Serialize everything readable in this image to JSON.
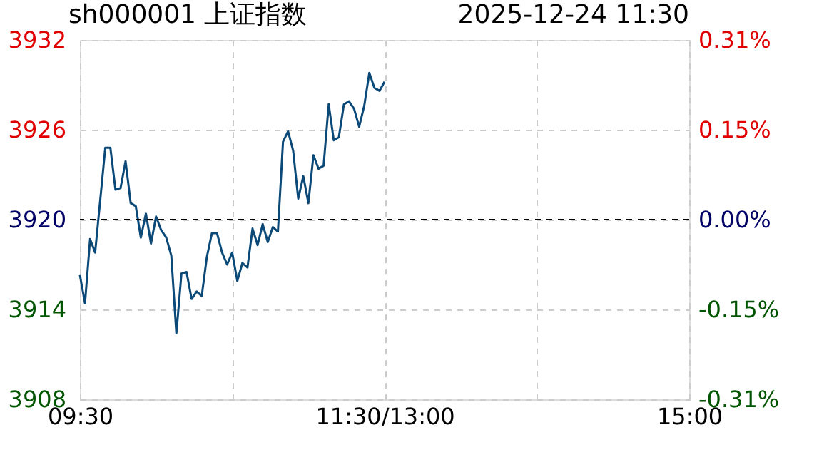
{
  "chart_data": {
    "type": "line",
    "title": "sh000001 上证指数",
    "annotations": [
      "2025-12-24  11:30"
    ],
    "categories": [
      "09:30",
      null,
      null,
      null,
      null,
      null,
      null,
      null,
      null,
      null,
      null,
      null,
      null,
      null,
      null,
      null,
      null,
      null,
      null,
      null,
      null,
      null,
      null,
      null,
      null,
      null,
      null,
      null,
      null,
      null,
      null,
      null,
      null,
      null,
      null,
      null,
      null,
      null,
      null,
      null,
      null,
      null,
      null,
      null,
      null,
      null,
      null,
      null,
      null,
      null,
      null,
      null,
      null,
      null,
      null,
      null,
      null,
      null,
      null,
      null,
      "11:30/13:00",
      null,
      null,
      null,
      null,
      null,
      null,
      null,
      null,
      null,
      null,
      null,
      null,
      null,
      null,
      null,
      null,
      null,
      null,
      null,
      null,
      null,
      null,
      null,
      null,
      null,
      null,
      null,
      null,
      null,
      null,
      null,
      null,
      null,
      null,
      null,
      null,
      null,
      null,
      null,
      null,
      null,
      null,
      null,
      null,
      null,
      null,
      null,
      null,
      null,
      null,
      null,
      null,
      null,
      null,
      null,
      null,
      null,
      null,
      null,
      "15:00"
    ],
    "series": [
      {
        "color": "#0b4a78",
        "values": [
          3916.3,
          3914.4,
          3918.7,
          3917.8,
          3921.3,
          3924.8,
          3924.8,
          3922.0,
          3922.1,
          3923.9,
          3921.1,
          3920.9,
          3918.8,
          3920.4,
          3918.4,
          3920.2,
          3919.3,
          3918.8,
          3917.6,
          3912.4,
          3916.4,
          3916.5,
          3914.7,
          3915.2,
          3914.9,
          3917.5,
          3919.1,
          3919.1,
          3917.8,
          3917.0,
          3917.8,
          3915.9,
          3917.1,
          3916.8,
          3919.4,
          3918.3,
          3919.7,
          3918.5,
          3919.5,
          3919.2,
          3925.2,
          3925.9,
          3924.6,
          3921.4,
          3922.9,
          3921.1,
          3924.3,
          3923.4,
          3923.6,
          3927.7,
          3925.3,
          3925.5,
          3927.7,
          3927.9,
          3927.4,
          3926.2,
          3927.6,
          3929.8,
          3928.8,
          3928.6,
          3929.2,
          null,
          null,
          null,
          null,
          null,
          null,
          null,
          null,
          null,
          null,
          null,
          null,
          null,
          null,
          null,
          null,
          null,
          null,
          null,
          null,
          null,
          null,
          null,
          null,
          null,
          null,
          null,
          null,
          null,
          null,
          null,
          null,
          null,
          null,
          null,
          null,
          null,
          null,
          null,
          null,
          null,
          null,
          null,
          null,
          null,
          null,
          null,
          null,
          null,
          null,
          null,
          null,
          null,
          null,
          null,
          null,
          null,
          null,
          null,
          null
        ]
      }
    ],
    "ylim": [
      3908,
      3932
    ],
    "yticks": [
      3908,
      3914,
      3920,
      3926,
      3932
    ],
    "y2lim": [
      -0.306,
      0.306
    ],
    "y2ticks": [
      {
        "value": -0.306,
        "label": "-0.31%"
      },
      {
        "value": -0.153,
        "label": "-0.15%"
      },
      {
        "value": 0,
        "label": "0.00%"
      },
      {
        "value": 0.153,
        "label": "0.15%"
      },
      {
        "value": 0.306,
        "label": "0.31%"
      }
    ],
    "ref_lines": [
      {
        "axis": "y",
        "value": 3920,
        "color": "#000000",
        "line_style": "dashed"
      }
    ],
    "grid": true,
    "line_style": "solid",
    "marker": "none"
  }
}
